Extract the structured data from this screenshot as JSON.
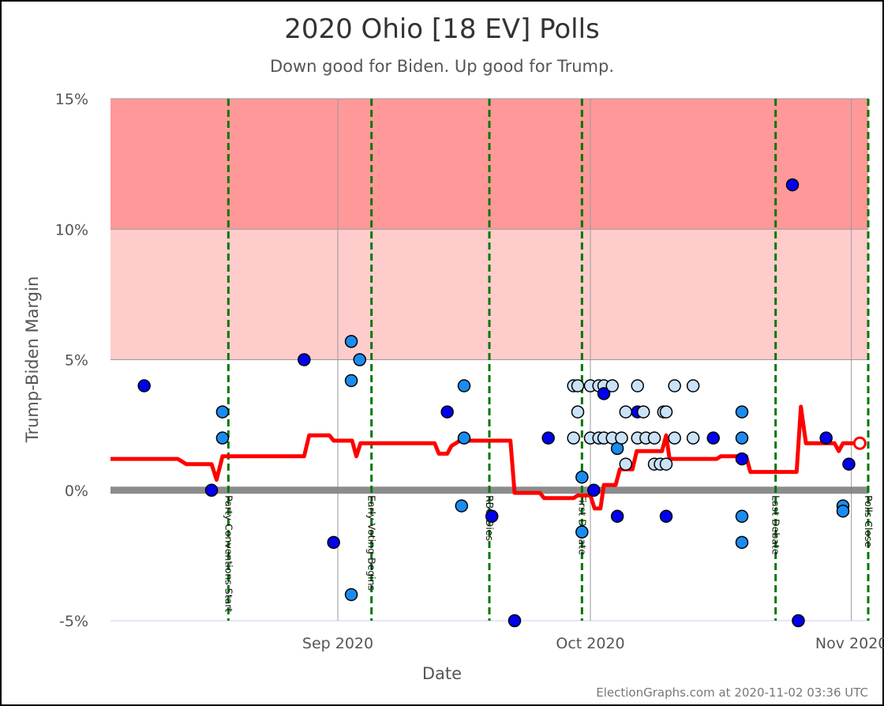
{
  "chart_data": {
    "type": "scatter",
    "title": "2020 Ohio [18 EV] Polls",
    "subtitle": "Down good for Biden. Up good for Trump.",
    "xlabel": "Date",
    "ylabel": "Trump-Biden Margin",
    "credit": "ElectionGraphs.com at 2020-11-02 03:36 UTC",
    "xlim": [
      "2020-08-05",
      "2020-11-03"
    ],
    "ylim": [
      -5,
      15
    ],
    "y_ticks": [
      {
        "value": 15,
        "label": "15%"
      },
      {
        "value": 10,
        "label": "10%"
      },
      {
        "value": 5,
        "label": "5%"
      },
      {
        "value": 0,
        "label": "0%"
      },
      {
        "value": -5,
        "label": "-5%"
      }
    ],
    "x_ticks": [
      {
        "date": "2020-09-01",
        "label": "Sep 2020"
      },
      {
        "date": "2020-10-01",
        "label": "Oct 2020"
      },
      {
        "date": "2020-11-01",
        "label": "Nov 2020"
      }
    ],
    "bands": [
      {
        "from": 10,
        "to": 15,
        "color": "#ff9999"
      },
      {
        "from": 5,
        "to": 10,
        "color": "#ffcccc"
      }
    ],
    "events": [
      {
        "date": "2020-08-19",
        "label": "Party Conventions Start"
      },
      {
        "date": "2020-09-05",
        "label": "Early Voting Begins"
      },
      {
        "date": "2020-09-19",
        "label": "RBG Dies"
      },
      {
        "date": "2020-09-30",
        "label": "First Debate"
      },
      {
        "date": "2020-10-23",
        "label": "Last Debate"
      },
      {
        "date": "2020-11-03",
        "label": "Polls Close"
      }
    ],
    "colors": {
      "average_line": "#ff0000",
      "zero_line": "#808080",
      "event_line": "#007700",
      "poll_dark": "#0000ee",
      "poll_medium": "#1a8cf0",
      "poll_light": "#c9e2f7",
      "grid": "#999999"
    },
    "average_series": [
      {
        "date": "2020-08-05",
        "y": 1.2
      },
      {
        "date": "2020-08-13",
        "y": 1.2
      },
      {
        "date": "2020-08-14",
        "y": 1.0
      },
      {
        "date": "2020-08-17",
        "y": 1.0
      },
      {
        "date": "2020-08-17.6",
        "y": 0.4
      },
      {
        "date": "2020-08-18.3",
        "y": 1.3
      },
      {
        "date": "2020-08-28",
        "y": 1.3
      },
      {
        "date": "2020-08-28.6",
        "y": 2.1
      },
      {
        "date": "2020-08-31",
        "y": 2.1
      },
      {
        "date": "2020-08-31.5",
        "y": 1.9
      },
      {
        "date": "2020-09-02.7",
        "y": 1.9
      },
      {
        "date": "2020-09-03.2",
        "y": 1.3
      },
      {
        "date": "2020-09-03.7",
        "y": 1.8
      },
      {
        "date": "2020-09-12.5",
        "y": 1.8
      },
      {
        "date": "2020-09-13",
        "y": 1.4
      },
      {
        "date": "2020-09-14",
        "y": 1.4
      },
      {
        "date": "2020-09-14.5",
        "y": 1.7
      },
      {
        "date": "2020-09-15.5",
        "y": 1.9
      },
      {
        "date": "2020-09-21.5",
        "y": 1.9
      },
      {
        "date": "2020-09-22",
        "y": -0.1
      },
      {
        "date": "2020-09-25",
        "y": -0.1
      },
      {
        "date": "2020-09-25.5",
        "y": -0.3
      },
      {
        "date": "2020-09-29",
        "y": -0.3
      },
      {
        "date": "2020-09-29.5",
        "y": -0.2
      },
      {
        "date": "2020-10-01",
        "y": -0.2
      },
      {
        "date": "2020-10-01.5",
        "y": -0.7
      },
      {
        "date": "2020-10-02.2",
        "y": -0.7
      },
      {
        "date": "2020-10-02.6",
        "y": 0.2
      },
      {
        "date": "2020-10-04",
        "y": 0.2
      },
      {
        "date": "2020-10-04.5",
        "y": 0.8
      },
      {
        "date": "2020-10-06",
        "y": 0.8
      },
      {
        "date": "2020-10-06.5",
        "y": 1.5
      },
      {
        "date": "2020-10-09.5",
        "y": 1.5
      },
      {
        "date": "2020-10-10",
        "y": 2.1
      },
      {
        "date": "2020-10-10.4",
        "y": 1.2
      },
      {
        "date": "2020-10-16",
        "y": 1.2
      },
      {
        "date": "2020-10-16.5",
        "y": 1.3
      },
      {
        "date": "2020-10-19.5",
        "y": 1.3
      },
      {
        "date": "2020-10-20",
        "y": 0.7
      },
      {
        "date": "2020-10-25.5",
        "y": 0.7
      },
      {
        "date": "2020-10-26",
        "y": 3.2
      },
      {
        "date": "2020-10-26.6",
        "y": 1.8
      },
      {
        "date": "2020-10-30",
        "y": 1.8
      },
      {
        "date": "2020-10-30.5",
        "y": 1.5
      },
      {
        "date": "2020-10-31",
        "y": 1.8
      },
      {
        "date": "2020-11-02",
        "y": 1.8
      }
    ],
    "average_endpoint": {
      "date": "2020-11-02",
      "y": 1.8
    },
    "polls": [
      {
        "date": "2020-08-09",
        "y": 4.0,
        "shade": "dark"
      },
      {
        "date": "2020-08-17",
        "y": 0.0,
        "shade": "dark"
      },
      {
        "date": "2020-08-18.3",
        "y": 3.0,
        "shade": "medium"
      },
      {
        "date": "2020-08-18.3",
        "y": 2.0,
        "shade": "medium"
      },
      {
        "date": "2020-08-28",
        "y": 5.0,
        "shade": "dark"
      },
      {
        "date": "2020-08-31.5",
        "y": -2.0,
        "shade": "dark"
      },
      {
        "date": "2020-09-02.6",
        "y": 5.7,
        "shade": "medium"
      },
      {
        "date": "2020-09-02.6",
        "y": 4.2,
        "shade": "medium"
      },
      {
        "date": "2020-09-02.6",
        "y": -4.0,
        "shade": "medium"
      },
      {
        "date": "2020-09-03.6",
        "y": 5.0,
        "shade": "medium"
      },
      {
        "date": "2020-09-14",
        "y": 3.0,
        "shade": "dark"
      },
      {
        "date": "2020-09-16",
        "y": 4.0,
        "shade": "medium"
      },
      {
        "date": "2020-09-16",
        "y": 2.0,
        "shade": "medium"
      },
      {
        "date": "2020-09-15.7",
        "y": -0.6,
        "shade": "medium"
      },
      {
        "date": "2020-09-19.3",
        "y": -1.0,
        "shade": "dark"
      },
      {
        "date": "2020-09-22",
        "y": -5.0,
        "shade": "dark"
      },
      {
        "date": "2020-09-26",
        "y": 2.0,
        "shade": "dark"
      },
      {
        "date": "2020-09-29",
        "y": 4.0,
        "shade": "light"
      },
      {
        "date": "2020-09-29.5",
        "y": 4.0,
        "shade": "light"
      },
      {
        "date": "2020-09-29.5",
        "y": 3.0,
        "shade": "light"
      },
      {
        "date": "2020-09-29",
        "y": 2.0,
        "shade": "light"
      },
      {
        "date": "2020-09-30",
        "y": 0.5,
        "shade": "medium"
      },
      {
        "date": "2020-09-30",
        "y": -1.6,
        "shade": "medium"
      },
      {
        "date": "2020-10-01",
        "y": 4.0,
        "shade": "light"
      },
      {
        "date": "2020-10-01",
        "y": 2.0,
        "shade": "light"
      },
      {
        "date": "2020-10-01.4",
        "y": 0.0,
        "shade": "dark"
      },
      {
        "date": "2020-10-02",
        "y": 4.0,
        "shade": "light"
      },
      {
        "date": "2020-10-02",
        "y": 2.0,
        "shade": "light"
      },
      {
        "date": "2020-10-02.6",
        "y": 4.0,
        "shade": "light"
      },
      {
        "date": "2020-10-02.6",
        "y": 3.7,
        "shade": "dark"
      },
      {
        "date": "2020-10-02.6",
        "y": 2.0,
        "shade": "light"
      },
      {
        "date": "2020-10-03.6",
        "y": 4.0,
        "shade": "light"
      },
      {
        "date": "2020-10-03.6",
        "y": 2.0,
        "shade": "light"
      },
      {
        "date": "2020-10-04.2",
        "y": 1.6,
        "shade": "medium"
      },
      {
        "date": "2020-10-04.2",
        "y": -1.0,
        "shade": "dark"
      },
      {
        "date": "2020-10-04.7",
        "y": 2.0,
        "shade": "light"
      },
      {
        "date": "2020-10-05.2",
        "y": 3.0,
        "shade": "light"
      },
      {
        "date": "2020-10-05.2",
        "y": 1.0,
        "shade": "light"
      },
      {
        "date": "2020-10-06.6",
        "y": 4.0,
        "shade": "light"
      },
      {
        "date": "2020-10-06.6",
        "y": 3.0,
        "shade": "dark"
      },
      {
        "date": "2020-10-06.6",
        "y": 2.0,
        "shade": "light"
      },
      {
        "date": "2020-10-07.3",
        "y": 3.0,
        "shade": "light"
      },
      {
        "date": "2020-10-07.6",
        "y": 2.0,
        "shade": "light"
      },
      {
        "date": "2020-10-08.6",
        "y": 2.0,
        "shade": "light"
      },
      {
        "date": "2020-10-08.6",
        "y": 1.0,
        "shade": "light"
      },
      {
        "date": "2020-10-09.3",
        "y": 1.0,
        "shade": "light"
      },
      {
        "date": "2020-10-09.7",
        "y": 3.0,
        "shade": "light"
      },
      {
        "date": "2020-10-10",
        "y": 3.0,
        "shade": "light"
      },
      {
        "date": "2020-10-10",
        "y": 1.0,
        "shade": "light"
      },
      {
        "date": "2020-10-10",
        "y": -1.0,
        "shade": "dark"
      },
      {
        "date": "2020-10-11",
        "y": 4.0,
        "shade": "light"
      },
      {
        "date": "2020-10-11",
        "y": 2.0,
        "shade": "light"
      },
      {
        "date": "2020-10-13.2",
        "y": 4.0,
        "shade": "light"
      },
      {
        "date": "2020-10-13.2",
        "y": 2.0,
        "shade": "light"
      },
      {
        "date": "2020-10-15.6",
        "y": 2.0,
        "shade": "dark"
      },
      {
        "date": "2020-10-19",
        "y": 3.0,
        "shade": "medium"
      },
      {
        "date": "2020-10-19",
        "y": 2.0,
        "shade": "medium"
      },
      {
        "date": "2020-10-19",
        "y": 1.2,
        "shade": "dark"
      },
      {
        "date": "2020-10-19",
        "y": -1.0,
        "shade": "medium"
      },
      {
        "date": "2020-10-19",
        "y": -2.0,
        "shade": "medium"
      },
      {
        "date": "2020-10-25",
        "y": 11.7,
        "shade": "dark"
      },
      {
        "date": "2020-10-25.7",
        "y": -5.0,
        "shade": "dark"
      },
      {
        "date": "2020-10-29",
        "y": 2.0,
        "shade": "dark"
      },
      {
        "date": "2020-10-31",
        "y": -0.6,
        "shade": "medium"
      },
      {
        "date": "2020-10-31",
        "y": -0.8,
        "shade": "medium"
      },
      {
        "date": "2020-10-31.7",
        "y": 1.0,
        "shade": "dark"
      }
    ]
  }
}
